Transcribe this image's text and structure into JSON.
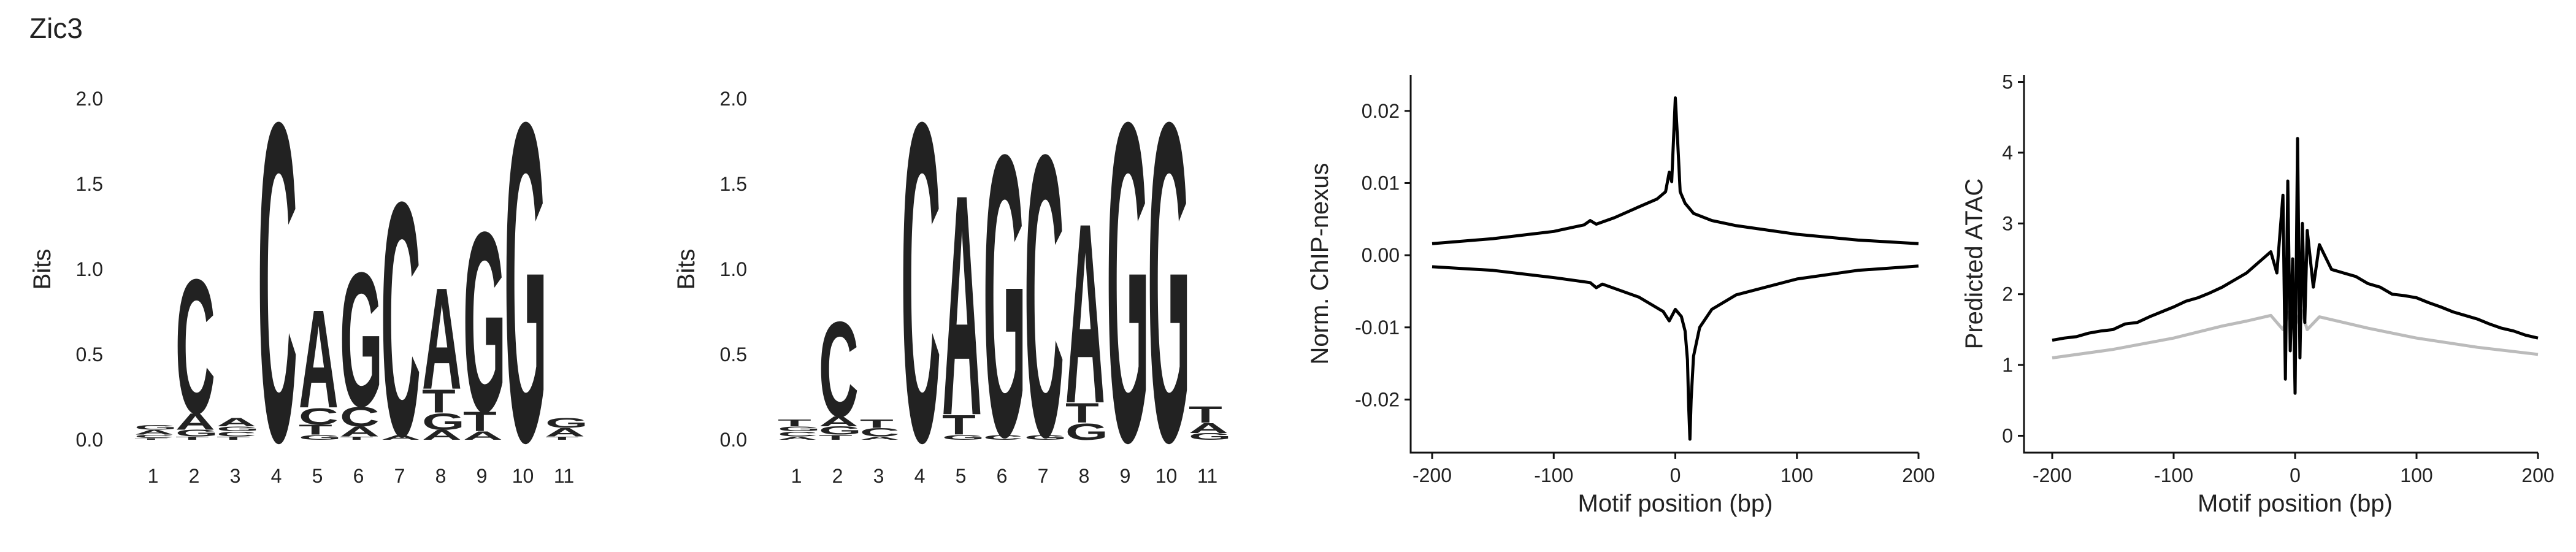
{
  "figure": {
    "title": "Zic3"
  },
  "colors": {
    "A": "#109648",
    "C": "#255C99",
    "G": "#F7B32B",
    "T": "#D62839",
    "signal": "#000000",
    "baseline": "#bbbbbb"
  },
  "chart_data": [
    {
      "type": "sequence-logo",
      "ylabel": "Bits",
      "ylim": [
        0,
        2
      ],
      "yticks": [
        "0.0",
        "0.5",
        "1.0",
        "1.5",
        "2.0"
      ],
      "positions": [
        "1",
        "2",
        "3",
        "4",
        "5",
        "6",
        "7",
        "8",
        "9",
        "10",
        "11"
      ],
      "stacks": [
        [
          {
            "base": "T",
            "bits": 0.01
          },
          {
            "base": "C",
            "bits": 0.02
          },
          {
            "base": "A",
            "bits": 0.03
          },
          {
            "base": "G",
            "bits": 0.03
          }
        ],
        [
          {
            "base": "T",
            "bits": 0.02
          },
          {
            "base": "G",
            "bits": 0.04
          },
          {
            "base": "A",
            "bits": 0.1
          },
          {
            "base": "C",
            "bits": 0.82
          }
        ],
        [
          {
            "base": "T",
            "bits": 0.02
          },
          {
            "base": "C",
            "bits": 0.03
          },
          {
            "base": "G",
            "bits": 0.03
          },
          {
            "base": "A",
            "bits": 0.05
          }
        ],
        [
          {
            "base": "C",
            "bits": 1.95
          }
        ],
        [
          {
            "base": "G",
            "bits": 0.03
          },
          {
            "base": "T",
            "bits": 0.06
          },
          {
            "base": "C",
            "bits": 0.1
          },
          {
            "base": "A",
            "bits": 0.6
          }
        ],
        [
          {
            "base": "T",
            "bits": 0.02
          },
          {
            "base": "A",
            "bits": 0.06
          },
          {
            "base": "C",
            "bits": 0.12
          },
          {
            "base": "G",
            "bits": 0.82
          }
        ],
        [
          {
            "base": "A",
            "bits": 0.03
          },
          {
            "base": "C",
            "bits": 1.43
          }
        ],
        [
          {
            "base": "A",
            "bits": 0.06
          },
          {
            "base": "G",
            "bits": 0.1
          },
          {
            "base": "T",
            "bits": 0.14
          },
          {
            "base": "A",
            "bits": 0.62
          }
        ],
        [
          {
            "base": "A",
            "bits": 0.05
          },
          {
            "base": "T",
            "bits": 0.12
          },
          {
            "base": "G",
            "bits": 1.1
          }
        ],
        [
          {
            "base": "G",
            "bits": 1.95
          }
        ],
        [
          {
            "base": "T",
            "bits": 0.02
          },
          {
            "base": "A",
            "bits": 0.05
          },
          {
            "base": "G",
            "bits": 0.06
          }
        ]
      ]
    },
    {
      "type": "sequence-logo",
      "ylabel": "Bits",
      "ylim": [
        0,
        2
      ],
      "yticks": [
        "0.0",
        "0.5",
        "1.0",
        "1.5",
        "2.0"
      ],
      "positions": [
        "1",
        "2",
        "3",
        "4",
        "5",
        "6",
        "7",
        "8",
        "9",
        "10",
        "11"
      ],
      "stacks": [
        [
          {
            "base": "A",
            "bits": 0.02
          },
          {
            "base": "C",
            "bits": 0.03
          },
          {
            "base": "G",
            "bits": 0.03
          },
          {
            "base": "T",
            "bits": 0.04
          }
        ],
        [
          {
            "base": "T",
            "bits": 0.03
          },
          {
            "base": "G",
            "bits": 0.05
          },
          {
            "base": "A",
            "bits": 0.06
          },
          {
            "base": "C",
            "bits": 0.58
          }
        ],
        [
          {
            "base": "A",
            "bits": 0.02
          },
          {
            "base": "C",
            "bits": 0.05
          },
          {
            "base": "T",
            "bits": 0.05
          }
        ],
        [
          {
            "base": "C",
            "bits": 1.95
          }
        ],
        [
          {
            "base": "G",
            "bits": 0.03
          },
          {
            "base": "T",
            "bits": 0.12
          },
          {
            "base": "A",
            "bits": 1.35
          }
        ],
        [
          {
            "base": "C",
            "bits": 0.03
          },
          {
            "base": "G",
            "bits": 1.72
          }
        ],
        [
          {
            "base": "G",
            "bits": 0.03
          },
          {
            "base": "C",
            "bits": 1.72
          }
        ],
        [
          {
            "base": "G",
            "bits": 0.1
          },
          {
            "base": "T",
            "bits": 0.12
          },
          {
            "base": "A",
            "bits": 1.1
          }
        ],
        [
          {
            "base": "G",
            "bits": 1.95
          }
        ],
        [
          {
            "base": "G",
            "bits": 1.95
          }
        ],
        [
          {
            "base": "G",
            "bits": 0.04
          },
          {
            "base": "A",
            "bits": 0.06
          },
          {
            "base": "T",
            "bits": 0.1
          }
        ]
      ]
    },
    {
      "type": "line",
      "ylabel": "Norm. ChIP-nexus",
      "xlabel": "Motif position (bp)",
      "xlim": [
        -200,
        200
      ],
      "ylim": [
        -0.026,
        0.025
      ],
      "xticks": [
        -200,
        -100,
        0,
        100,
        200
      ],
      "yticks": [
        {
          "v": 0.02,
          "label": "0.02"
        },
        {
          "v": 0.01,
          "label": "0.01"
        },
        {
          "v": 0,
          "label": "0.00"
        },
        {
          "v": -0.01,
          "label": "-0.01"
        },
        {
          "v": -0.02,
          "label": "-0.02"
        }
      ],
      "series": [
        {
          "color": "#000000",
          "x": [
            -200,
            -150,
            -100,
            -75,
            -70,
            -65,
            -50,
            -30,
            -15,
            -8,
            -5,
            -3,
            0,
            2,
            4,
            8,
            15,
            30,
            50,
            100,
            150,
            200
          ],
          "y": [
            0.0016,
            0.0023,
            0.0033,
            0.0042,
            0.0048,
            0.0043,
            0.0052,
            0.0067,
            0.0078,
            0.0088,
            0.0115,
            0.0102,
            0.0218,
            0.0155,
            0.0088,
            0.0072,
            0.0058,
            0.0048,
            0.0041,
            0.0029,
            0.0021,
            0.0016
          ]
        },
        {
          "color": "#000000",
          "x": [
            -200,
            -150,
            -100,
            -70,
            -65,
            -60,
            -30,
            -10,
            -5,
            0,
            5,
            8,
            10,
            11,
            12,
            13,
            15,
            20,
            30,
            50,
            100,
            150,
            200
          ],
          "y": [
            -0.0016,
            -0.0021,
            -0.0031,
            -0.0038,
            -0.0045,
            -0.004,
            -0.0058,
            -0.0078,
            -0.0091,
            -0.0075,
            -0.0085,
            -0.0105,
            -0.0145,
            -0.021,
            -0.0255,
            -0.02,
            -0.014,
            -0.01,
            -0.0075,
            -0.0055,
            -0.0033,
            -0.0021,
            -0.0015
          ]
        }
      ]
    },
    {
      "type": "line",
      "ylabel": "Predicted ATAC",
      "xlabel": "Motif position (bp)",
      "xlim": [
        -200,
        200
      ],
      "ylim": [
        -0.1,
        5.1
      ],
      "xticks": [
        -200,
        -100,
        0,
        100,
        200
      ],
      "yticks": [
        {
          "v": 0,
          "label": "0"
        },
        {
          "v": 1,
          "label": "1"
        },
        {
          "v": 2,
          "label": "2"
        },
        {
          "v": 3,
          "label": "3"
        },
        {
          "v": 4,
          "label": "4"
        },
        {
          "v": 5,
          "label": "5"
        }
      ],
      "series": [
        {
          "color": "#bbbbbb",
          "x": [
            -200,
            -150,
            -100,
            -60,
            -40,
            -20,
            -10,
            -5,
            0,
            5,
            10,
            20,
            40,
            60,
            100,
            150,
            200
          ],
          "y": [
            1.1,
            1.22,
            1.38,
            1.55,
            1.62,
            1.7,
            1.5,
            1.75,
            1.55,
            1.78,
            1.5,
            1.68,
            1.6,
            1.52,
            1.38,
            1.25,
            1.15
          ]
        },
        {
          "color": "#000000",
          "x": [
            -200,
            -190,
            -180,
            -170,
            -160,
            -150,
            -140,
            -130,
            -120,
            -110,
            -100,
            -90,
            -80,
            -70,
            -60,
            -50,
            -40,
            -30,
            -20,
            -15,
            -10,
            -8,
            -6,
            -4,
            -2,
            0,
            2,
            4,
            6,
            8,
            10,
            15,
            20,
            30,
            40,
            50,
            60,
            70,
            80,
            90,
            100,
            110,
            120,
            130,
            140,
            150,
            160,
            170,
            180,
            190,
            200
          ],
          "y": [
            1.35,
            1.38,
            1.4,
            1.45,
            1.48,
            1.5,
            1.58,
            1.6,
            1.68,
            1.75,
            1.82,
            1.9,
            1.95,
            2.02,
            2.1,
            2.2,
            2.3,
            2.45,
            2.6,
            2.3,
            3.4,
            0.8,
            3.6,
            1.2,
            2.5,
            0.6,
            4.2,
            1.1,
            3.0,
            1.6,
            2.9,
            2.1,
            2.7,
            2.35,
            2.3,
            2.25,
            2.15,
            2.1,
            2.0,
            1.98,
            1.95,
            1.88,
            1.82,
            1.75,
            1.7,
            1.65,
            1.58,
            1.52,
            1.48,
            1.42,
            1.38
          ]
        }
      ]
    }
  ]
}
